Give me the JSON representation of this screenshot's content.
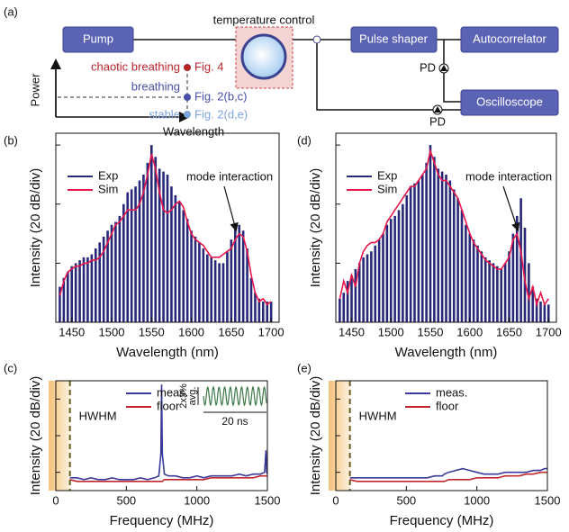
{
  "panel_labels": [
    "(a)",
    "(b)",
    "(c)",
    "(d)",
    "(e)"
  ],
  "diagram": {
    "pump": "Pump",
    "temperature_control": "temperature control",
    "pulse_shaper": "Pulse shaper",
    "autocorrelator": "Autocorrelator",
    "oscilloscope": "Oscilloscope",
    "pd_labels": [
      "PD",
      "PD"
    ],
    "power_axis": "Power",
    "wavelength_axis": "Wavelength",
    "states": [
      {
        "name": "chaotic breathing",
        "figure": "Fig. 4"
      },
      {
        "name": "breathing",
        "figure": "Fig. 2(b,c)"
      },
      {
        "name": "stable",
        "figure": "Fig. 2(d,e)"
      }
    ]
  },
  "chart_data": [
    {
      "type": "line",
      "xlabel": "Wavelength (nm)",
      "ylabel": "Intensity (20 dB/div)",
      "annotation": "mode interaction",
      "x": [
        1435,
        1440,
        1445,
        1450,
        1455,
        1460,
        1465,
        1470,
        1475,
        1480,
        1485,
        1490,
        1495,
        1500,
        1505,
        1510,
        1515,
        1520,
        1525,
        1530,
        1535,
        1540,
        1545,
        1550,
        1555,
        1560,
        1565,
        1570,
        1575,
        1580,
        1585,
        1590,
        1595,
        1600,
        1605,
        1610,
        1615,
        1620,
        1625,
        1630,
        1635,
        1640,
        1645,
        1650,
        1655,
        1660,
        1665,
        1670,
        1675,
        1680,
        1685,
        1690,
        1695,
        1700
      ],
      "series": [
        {
          "name": "Exp",
          "color": "#28287a",
          "style": "comb",
          "values": [
            12,
            15,
            17,
            19,
            20,
            21,
            22,
            22,
            23,
            25,
            27,
            29,
            31,
            33,
            34,
            36,
            40,
            44,
            45,
            46,
            48,
            50,
            54,
            60,
            56,
            52,
            51,
            50,
            46,
            43,
            41,
            38,
            35,
            31,
            29,
            27,
            25,
            23,
            22,
            21,
            20,
            20,
            24,
            28,
            32,
            33,
            31,
            25,
            15,
            10,
            8,
            7,
            7,
            7
          ]
        },
        {
          "name": "Sim",
          "color": "#e8174b",
          "style": "line",
          "values": [
            9,
            14,
            17,
            18,
            19,
            19,
            20,
            20,
            21,
            21,
            22,
            24,
            27,
            30,
            33,
            34,
            36,
            38,
            38,
            38,
            40,
            44,
            50,
            57,
            52,
            44,
            38,
            37,
            38,
            40,
            41,
            39,
            34,
            30,
            28,
            27,
            26,
            24,
            22,
            22,
            22,
            23,
            24,
            25,
            28,
            30,
            29,
            24,
            16,
            10,
            7,
            8,
            6,
            7
          ]
        }
      ],
      "xlim": [
        1430,
        1710
      ],
      "xticks": [
        1450,
        1500,
        1550,
        1600,
        1650,
        1700
      ],
      "ylim": [
        0,
        64
      ],
      "yticks": [
        20,
        40,
        60
      ]
    },
    {
      "type": "line",
      "xlabel": "Frequency (MHz)",
      "ylabel": "Intensity (20 dB/div)",
      "x": [
        0,
        50,
        100,
        150,
        200,
        250,
        300,
        350,
        400,
        450,
        500,
        550,
        600,
        650,
        700,
        730,
        745,
        750,
        755,
        770,
        800,
        850,
        900,
        950,
        1000,
        1050,
        1100,
        1150,
        1200,
        1250,
        1300,
        1350,
        1400,
        1450,
        1480,
        1490,
        1495,
        1500
      ],
      "series": [
        {
          "name": "meas.",
          "color": "#3a3a9a",
          "style": "line",
          "values": [
            8,
            7,
            7,
            7,
            6,
            7,
            6,
            6,
            7,
            6,
            6,
            6,
            7,
            6,
            7,
            8,
            20,
            58,
            20,
            9,
            8,
            8,
            7,
            7,
            8,
            7,
            8,
            8,
            8,
            8,
            9,
            8,
            9,
            9,
            10,
            22,
            10,
            9
          ]
        },
        {
          "name": "floor",
          "color": "#c0282d",
          "style": "line",
          "values": [
            7,
            6,
            6,
            5,
            5,
            5,
            5,
            5,
            5,
            5,
            5,
            5,
            5,
            5,
            5,
            5,
            5,
            5,
            5,
            6,
            6,
            6,
            6,
            6,
            6,
            6,
            7,
            7,
            7,
            7,
            7,
            7,
            7,
            8,
            8,
            8,
            8,
            8
          ]
        }
      ],
      "xlim": [
        0,
        1500
      ],
      "xticks": [
        0,
        500,
        1000,
        1500
      ],
      "ylim": [
        0,
        60
      ],
      "yticks": [
        10,
        30,
        50
      ],
      "shaded_region": {
        "label": "HWHM",
        "x": 100
      },
      "inset": {
        "labels": [
          "2x3%",
          "avg."
        ],
        "timescale": "20 ns"
      }
    },
    {
      "type": "line",
      "xlabel": "Wavelength (nm)",
      "ylabel": "Intensity (20 dB/div)",
      "annotation": "mode interaction",
      "x": [
        1435,
        1440,
        1445,
        1450,
        1455,
        1460,
        1465,
        1470,
        1475,
        1480,
        1485,
        1490,
        1495,
        1500,
        1505,
        1510,
        1515,
        1520,
        1525,
        1530,
        1535,
        1540,
        1545,
        1550,
        1555,
        1560,
        1565,
        1570,
        1575,
        1580,
        1585,
        1590,
        1595,
        1600,
        1605,
        1610,
        1615,
        1620,
        1625,
        1630,
        1635,
        1640,
        1645,
        1650,
        1655,
        1660,
        1665,
        1670,
        1675,
        1680,
        1685,
        1690,
        1695,
        1700
      ],
      "series": [
        {
          "name": "Exp",
          "color": "#28287a",
          "style": "comb",
          "values": [
            8,
            10,
            14,
            16,
            18,
            20,
            22,
            23,
            24,
            26,
            28,
            30,
            33,
            35,
            36,
            38,
            40,
            43,
            46,
            47,
            48,
            50,
            54,
            60,
            56,
            52,
            51,
            50,
            48,
            45,
            42,
            38,
            33,
            30,
            28,
            26,
            24,
            22,
            21,
            20,
            19,
            18,
            20,
            24,
            30,
            36,
            42,
            32,
            20,
            12,
            8,
            7,
            6,
            6
          ]
        },
        {
          "name": "Sim",
          "color": "#e8174b",
          "style": "line",
          "values": [
            8,
            14,
            10,
            16,
            12,
            20,
            24,
            26,
            27,
            27,
            28,
            30,
            34,
            36,
            38,
            40,
            42,
            44,
            46,
            46,
            48,
            50,
            52,
            58,
            54,
            50,
            48,
            48,
            46,
            44,
            42,
            38,
            34,
            30,
            27,
            25,
            23,
            21,
            20,
            19,
            18,
            18,
            20,
            22,
            28,
            30,
            24,
            14,
            8,
            12,
            6,
            10,
            6,
            8
          ]
        }
      ],
      "xlim": [
        1430,
        1710
      ],
      "xticks": [
        1450,
        1500,
        1550,
        1600,
        1650,
        1700
      ],
      "ylim": [
        0,
        64
      ],
      "yticks": [
        20,
        40,
        60
      ]
    },
    {
      "type": "line",
      "xlabel": "Frequency (MHz)",
      "ylabel": "Intensity (20 dB/div)",
      "x": [
        0,
        50,
        100,
        150,
        200,
        250,
        300,
        350,
        400,
        450,
        500,
        550,
        600,
        650,
        700,
        730,
        745,
        750,
        755,
        770,
        800,
        850,
        900,
        950,
        1000,
        1050,
        1100,
        1150,
        1200,
        1250,
        1300,
        1350,
        1400,
        1450,
        1480,
        1490,
        1495,
        1500
      ],
      "series": [
        {
          "name": "meas.",
          "color": "#3a3a9a",
          "style": "line",
          "values": [
            8,
            7,
            7,
            7,
            7,
            7,
            7,
            7,
            7,
            7,
            7,
            7,
            7,
            7,
            8,
            8,
            8,
            8,
            8,
            9,
            10,
            11,
            12,
            11,
            10,
            9,
            9,
            9,
            10,
            10,
            10,
            10,
            11,
            11,
            12,
            12,
            12,
            12
          ]
        },
        {
          "name": "floor",
          "color": "#c0282d",
          "style": "line",
          "values": [
            7,
            6,
            6,
            5,
            5,
            5,
            5,
            5,
            5,
            5,
            5,
            5,
            5,
            5,
            5,
            5,
            5,
            5,
            5,
            5,
            6,
            6,
            6,
            6,
            7,
            7,
            7,
            7,
            8,
            8,
            8,
            9,
            9,
            10,
            10,
            10,
            10,
            10
          ]
        }
      ],
      "xlim": [
        0,
        1500
      ],
      "xticks": [
        0,
        500,
        1000,
        1500
      ],
      "ylim": [
        0,
        60
      ],
      "yticks": [
        10,
        30,
        50
      ],
      "shaded_region": {
        "label": "HWHM",
        "x": 100
      }
    }
  ]
}
